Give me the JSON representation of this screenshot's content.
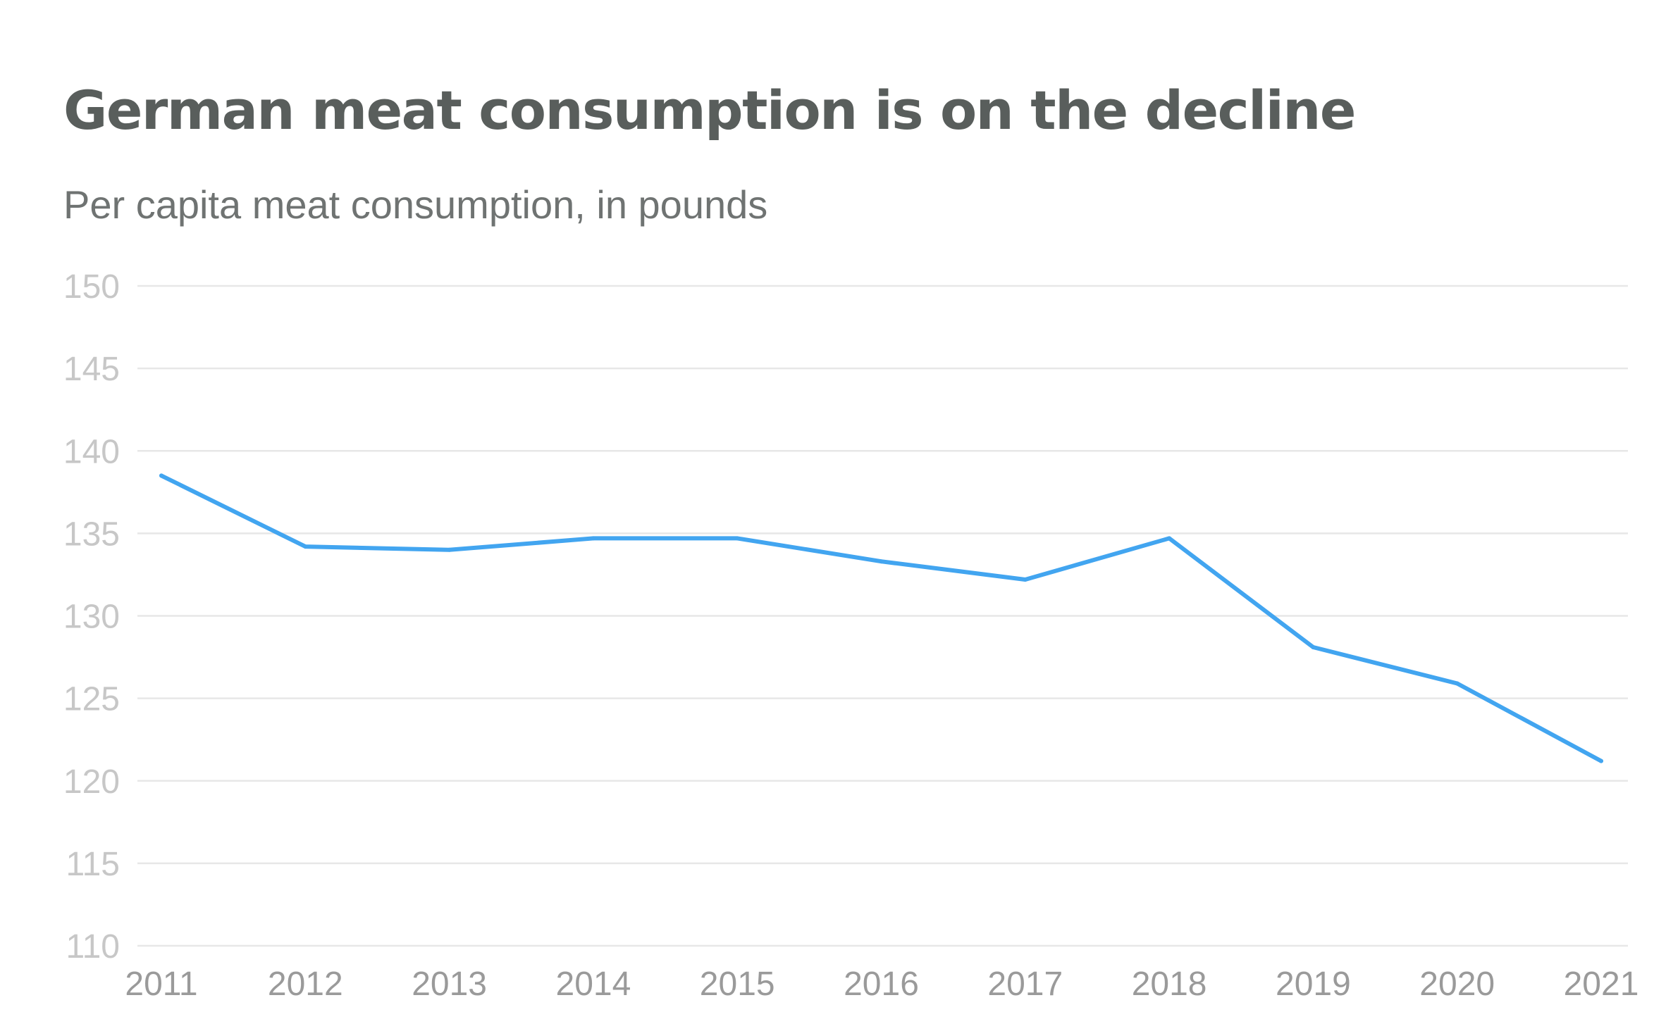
{
  "colors": {
    "line": "#42a5f0",
    "gridline": "#e7e7e7",
    "tick_text": "#c7c7c7",
    "xtick_text": "#9a9a9a",
    "title": "#595e5c",
    "subtitle": "#6f7372"
  },
  "chart_data": {
    "type": "line",
    "title": "German meat consumption is on the decline",
    "subtitle": "Per capita meat consumption, in pounds",
    "xlabel": "",
    "ylabel": "",
    "x": [
      "2011",
      "2012",
      "2013",
      "2014",
      "2015",
      "2016",
      "2017",
      "2018",
      "2019",
      "2020",
      "2021"
    ],
    "series": [
      {
        "name": "Per capita meat consumption",
        "values": [
          138.5,
          134.2,
          134.0,
          134.7,
          134.7,
          133.3,
          132.2,
          134.7,
          128.1,
          125.9,
          121.2
        ]
      }
    ],
    "ylim": [
      110,
      150
    ],
    "yticks": [
      "110",
      "115",
      "120",
      "125",
      "130",
      "135",
      "140",
      "145",
      "150"
    ],
    "grid": true,
    "legend": "none"
  }
}
